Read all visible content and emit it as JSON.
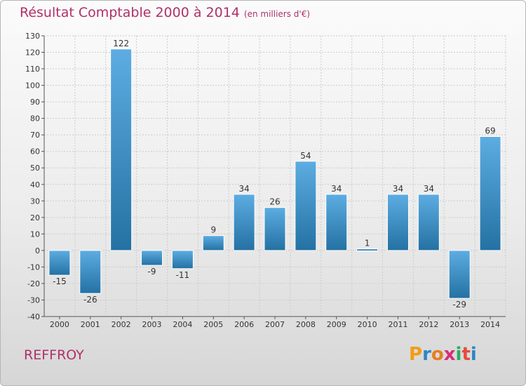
{
  "title": "Résultat Comptable 2000 à 2014",
  "subtitle": "(en milliers d'€)",
  "commune": "REFFROY",
  "logo": {
    "letters": [
      "P",
      "r",
      "o",
      "x",
      "i",
      "t",
      "i"
    ],
    "colors": [
      "#f39c12",
      "#2e86c1",
      "#e67e22",
      "#d62c7a",
      "#27ae60",
      "#e74c3c",
      "#2e86c1"
    ]
  },
  "colors": {
    "bar_top": "#5dade2",
    "bar_bottom": "#2471a3",
    "title": "#b0306a",
    "grid": "#cccccc"
  },
  "chart_data": {
    "type": "bar",
    "title": "Résultat Comptable 2000 à 2014",
    "ylabel": "en milliers d'€",
    "xlabel": "",
    "categories": [
      "2000",
      "2001",
      "2002",
      "2003",
      "2004",
      "2005",
      "2006",
      "2007",
      "2008",
      "2009",
      "2010",
      "2011",
      "2012",
      "2013",
      "2014"
    ],
    "values": [
      -15,
      -26,
      122,
      -9,
      -11,
      9,
      34,
      26,
      54,
      34,
      1,
      34,
      34,
      -29,
      69
    ],
    "ylim": [
      -40,
      130
    ],
    "yticks": [
      -40,
      -30,
      -20,
      -10,
      0,
      10,
      20,
      30,
      40,
      50,
      60,
      70,
      80,
      90,
      100,
      110,
      120,
      130
    ],
    "grid": true
  }
}
